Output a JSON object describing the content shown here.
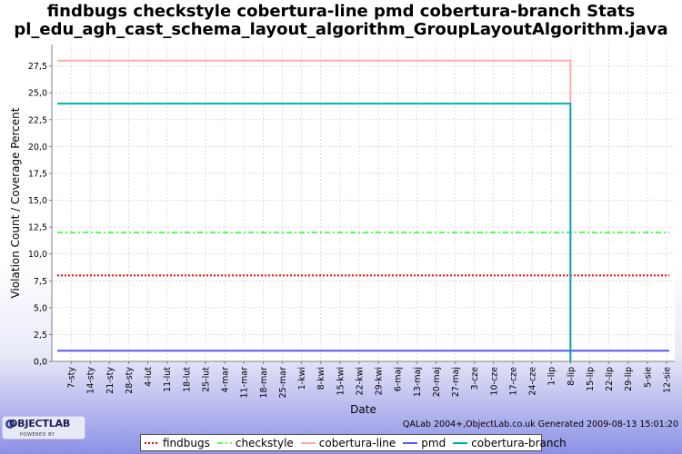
{
  "titles": {
    "line1": "findbugs checkstyle cobertura-line pmd cobertura-branch  Stats",
    "line2": "pl_edu_agh_cast_schema_layout_algorithm_GroupLayoutAlgorithm.java"
  },
  "footer": {
    "generated": "QALab 2004+,ObjectLab.co.uk Generated 2009-08-13 15:01:20"
  },
  "logo": {
    "text_objectlab": "OBJECTLAB",
    "text_powered": "POWERED BY"
  },
  "chart_data": {
    "type": "line",
    "title": "findbugs checkstyle cobertura-line pmd cobertura-branch  Stats",
    "subtitle": "pl_edu_agh_cast_schema_layout_algorithm_GroupLayoutAlgorithm.java",
    "xlabel": "Date",
    "ylabel": "Violation Count / Coverage Percent",
    "ylim": [
      0,
      29.5
    ],
    "yticks": [
      "0,0",
      "2,5",
      "5,0",
      "7,5",
      "10,0",
      "12,5",
      "15,0",
      "17,5",
      "20,0",
      "22,5",
      "25,0",
      "27,5"
    ],
    "ytick_values": [
      0,
      2.5,
      5,
      7.5,
      10,
      12.5,
      15,
      17.5,
      20,
      22.5,
      25,
      27.5
    ],
    "x_start": "2008-12-31",
    "x_end": "2009-08-15",
    "categories": [
      "7-sty",
      "14-sty",
      "21-sty",
      "28-sty",
      "4-lut",
      "11-lut",
      "18-lut",
      "25-lut",
      "4-mar",
      "11-mar",
      "18-mar",
      "25-mar",
      "1-kwi",
      "8-kwi",
      "15-kwi",
      "22-kwi",
      "29-kwi",
      "6-maj",
      "13-maj",
      "20-maj",
      "27-maj",
      "3-cze",
      "10-cze",
      "17-cze",
      "24-cze",
      "1-lip",
      "8-lip",
      "15-lip",
      "22-lip",
      "29-lip",
      "5-sie",
      "12-sie"
    ],
    "category_dates": [
      "2009-01-07",
      "2009-01-14",
      "2009-01-21",
      "2009-01-28",
      "2009-02-04",
      "2009-02-11",
      "2009-02-18",
      "2009-02-25",
      "2009-03-04",
      "2009-03-11",
      "2009-03-18",
      "2009-03-25",
      "2009-04-01",
      "2009-04-08",
      "2009-04-15",
      "2009-04-22",
      "2009-04-29",
      "2009-05-06",
      "2009-05-13",
      "2009-05-20",
      "2009-05-27",
      "2009-06-03",
      "2009-06-10",
      "2009-06-17",
      "2009-06-24",
      "2009-07-01",
      "2009-07-08",
      "2009-07-15",
      "2009-07-22",
      "2009-07-29",
      "2009-08-05",
      "2009-08-12"
    ],
    "grid": true,
    "legend_position": "bottom",
    "series": [
      {
        "name": "findbugs",
        "color": "#ff0000",
        "style": "dotted",
        "x": [
          "2009-01-02",
          "2009-08-13"
        ],
        "values": [
          8,
          8
        ]
      },
      {
        "name": "checkstyle",
        "color": "#55ff55",
        "style": "dashdot",
        "x": [
          "2009-01-02",
          "2009-08-13"
        ],
        "values": [
          12,
          12
        ]
      },
      {
        "name": "cobertura-line",
        "color": "#ffaaaa",
        "style": "solid",
        "x": [
          "2009-01-02",
          "2009-07-08",
          "2009-07-08"
        ],
        "values": [
          28,
          28,
          0
        ]
      },
      {
        "name": "pmd",
        "color": "#5555ff",
        "style": "solid",
        "x": [
          "2009-01-02",
          "2009-08-13"
        ],
        "values": [
          1,
          1
        ]
      },
      {
        "name": "cobertura-branch",
        "color": "#00b0b0",
        "style": "solid",
        "x": [
          "2009-01-02",
          "2009-07-08",
          "2009-07-08"
        ],
        "values": [
          24,
          24,
          0
        ]
      }
    ]
  }
}
